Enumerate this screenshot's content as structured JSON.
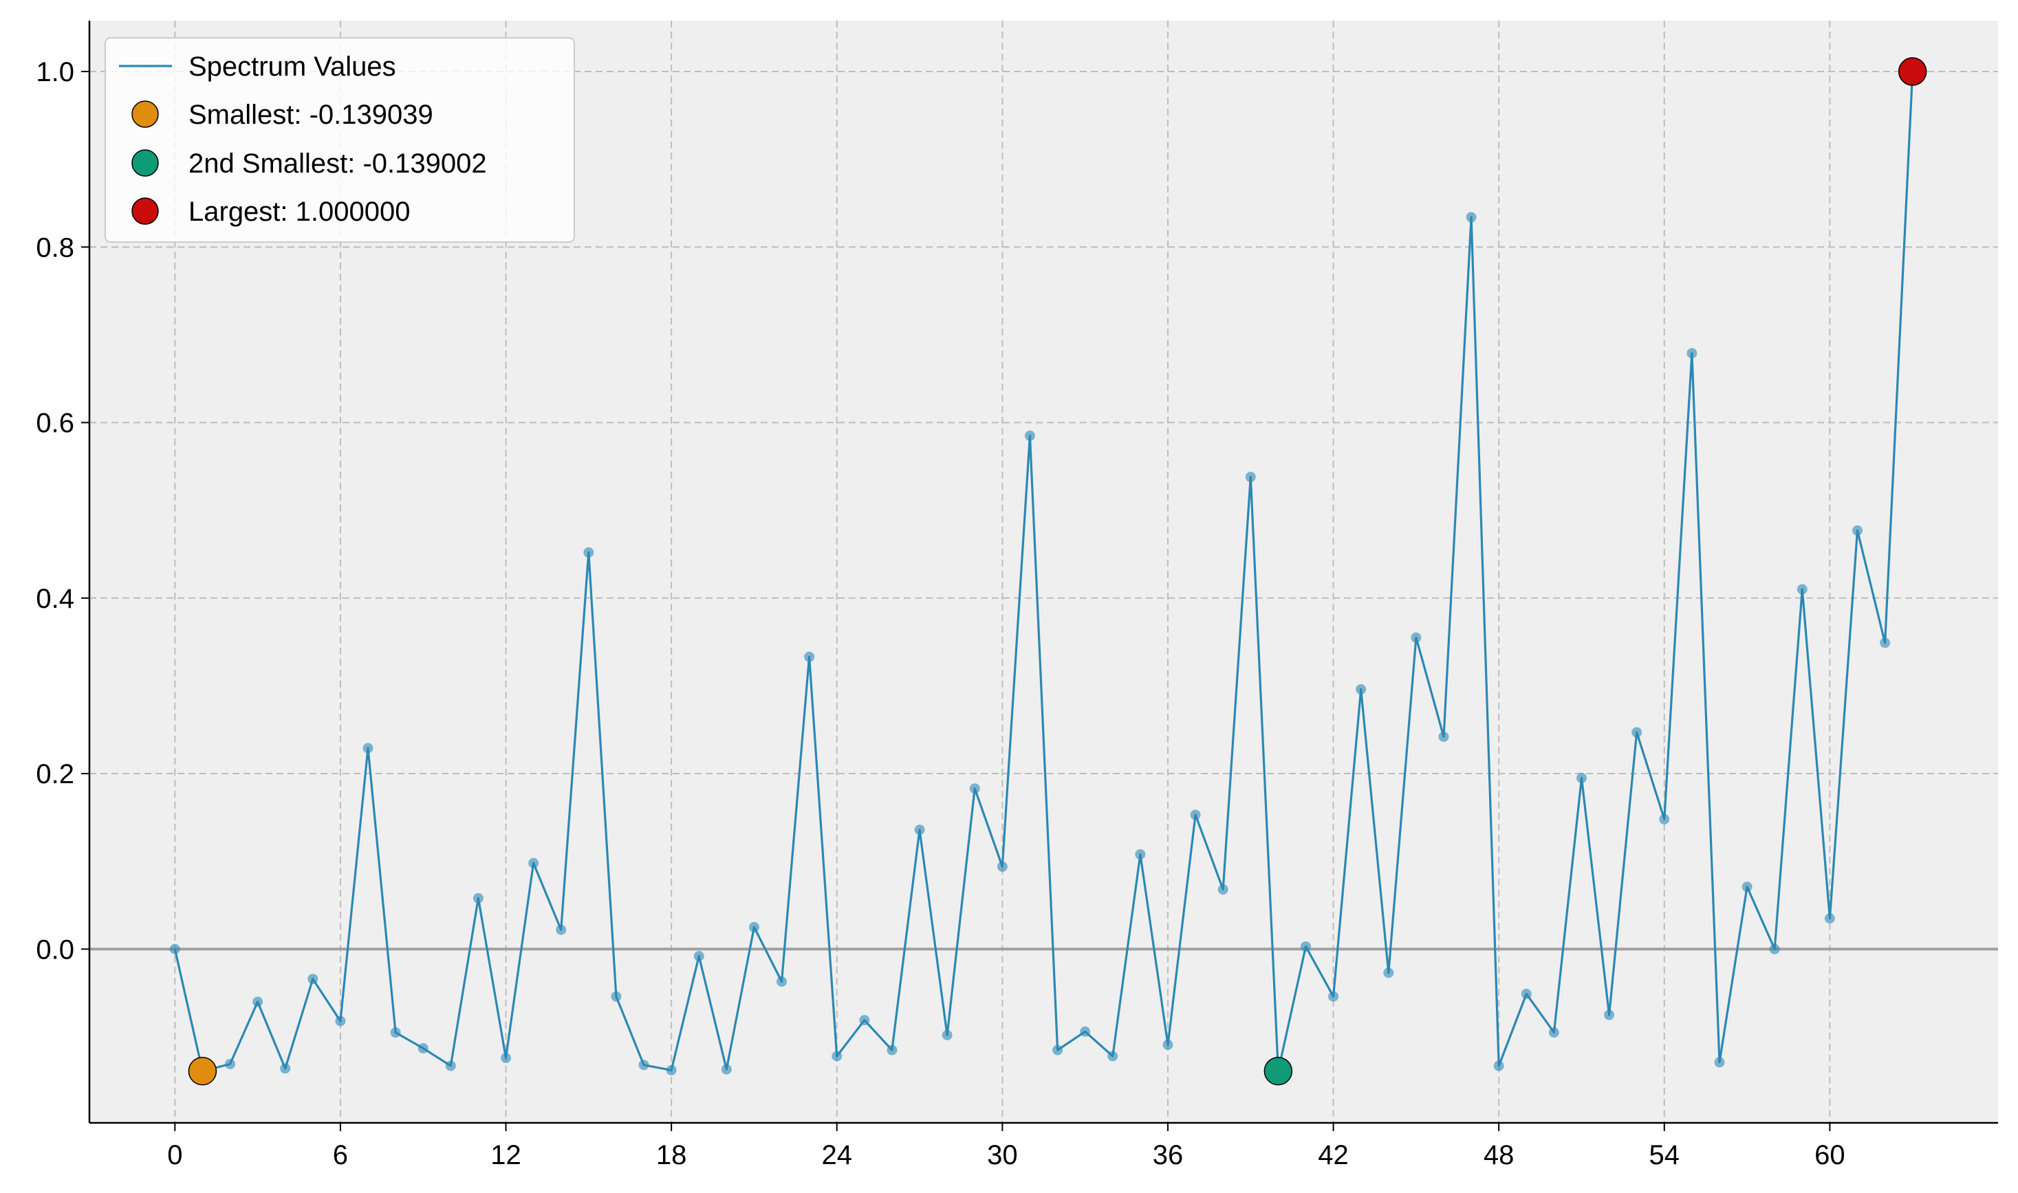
{
  "chart_data": {
    "type": "line",
    "title": "",
    "xlabel": "",
    "ylabel": "",
    "xlim": [
      -3.1,
      66.1
    ],
    "ylim": [
      -0.198,
      1.058
    ],
    "x_ticks": [
      0,
      6,
      12,
      18,
      24,
      30,
      36,
      42,
      48,
      54,
      60
    ],
    "y_ticks": [
      0.0,
      0.2,
      0.4,
      0.6,
      0.8,
      1.0
    ],
    "x_tick_labels": [
      "0",
      "6",
      "12",
      "18",
      "24",
      "30",
      "36",
      "42",
      "48",
      "54",
      "60"
    ],
    "y_tick_labels": [
      "0.0",
      "0.2",
      "0.4",
      "0.6",
      "0.8",
      "1.0"
    ],
    "grid": true,
    "legend_position": "top-left",
    "series": [
      {
        "name": "Spectrum Values",
        "color": "#2b88b5",
        "x": [
          0,
          1,
          2,
          3,
          4,
          5,
          6,
          7,
          8,
          9,
          10,
          11,
          12,
          13,
          14,
          15,
          16,
          17,
          18,
          19,
          20,
          21,
          22,
          23,
          24,
          25,
          26,
          27,
          28,
          29,
          30,
          31,
          32,
          33,
          34,
          35,
          36,
          37,
          38,
          39,
          40,
          41,
          42,
          43,
          44,
          45,
          46,
          47,
          48,
          49,
          50,
          51,
          52,
          53,
          54,
          55,
          56,
          57,
          58,
          59,
          60,
          61,
          62,
          63
        ],
        "values": [
          0.0,
          -0.139,
          -0.131,
          -0.06,
          -0.136,
          -0.034,
          -0.082,
          0.229,
          -0.095,
          -0.113,
          -0.133,
          0.058,
          -0.124,
          0.098,
          0.022,
          0.452,
          -0.054,
          -0.132,
          -0.138,
          -0.008,
          -0.137,
          0.025,
          -0.037,
          0.333,
          -0.122,
          -0.081,
          -0.115,
          0.136,
          -0.098,
          0.183,
          0.094,
          0.585,
          -0.115,
          -0.094,
          -0.122,
          0.108,
          -0.109,
          0.153,
          0.068,
          0.538,
          -0.139,
          0.003,
          -0.054,
          0.296,
          -0.027,
          0.355,
          0.242,
          0.834,
          -0.133,
          -0.051,
          -0.095,
          0.195,
          -0.075,
          0.247,
          0.148,
          0.679,
          -0.129,
          0.071,
          0.0,
          0.41,
          0.035,
          0.477,
          0.349,
          1.0
        ]
      }
    ],
    "highlights": [
      {
        "name": "Smallest: -0.139039",
        "x": 1,
        "y": -0.139039,
        "color": "#e08c0e"
      },
      {
        "name": "2nd Smallest: -0.139002",
        "x": 40,
        "y": -0.139002,
        "color": "#0e9b75"
      },
      {
        "name": "Largest: 1.000000",
        "x": 63,
        "y": 1.0,
        "color": "#c90b0b"
      }
    ],
    "reference_line_y": 0.0
  }
}
